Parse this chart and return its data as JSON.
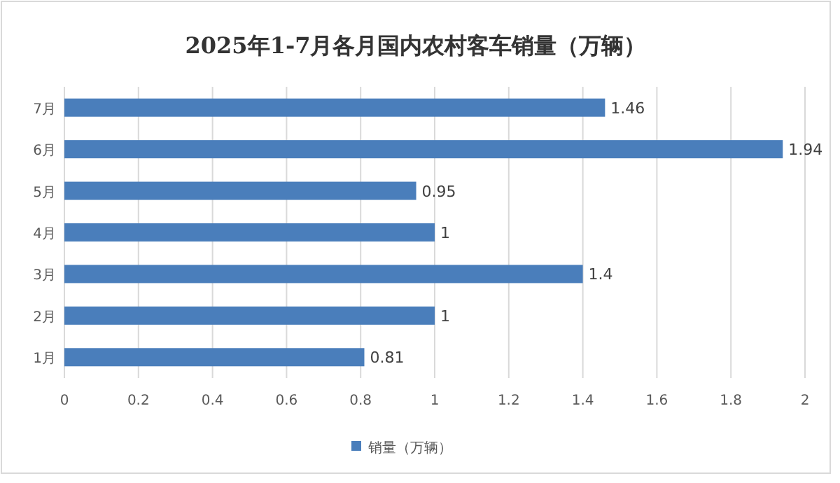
{
  "chart_data": {
    "type": "bar",
    "orientation": "horizontal",
    "title": "2025年1-7月各月国内农村客车销量（万辆）",
    "categories": [
      "7月",
      "6月",
      "5月",
      "4月",
      "3月",
      "2月",
      "1月"
    ],
    "series": [
      {
        "name": "销量（万辆）",
        "color": "#4a7ebb",
        "values": [
          1.46,
          1.94,
          0.95,
          1,
          1.4,
          1,
          0.81
        ]
      }
    ],
    "xlim": [
      0,
      2
    ],
    "xticks": [
      0,
      0.2,
      0.4,
      0.6,
      0.8,
      1,
      1.2,
      1.4,
      1.6,
      1.8,
      2
    ],
    "grid": "x",
    "legend": "bottom",
    "data_labels": true
  }
}
